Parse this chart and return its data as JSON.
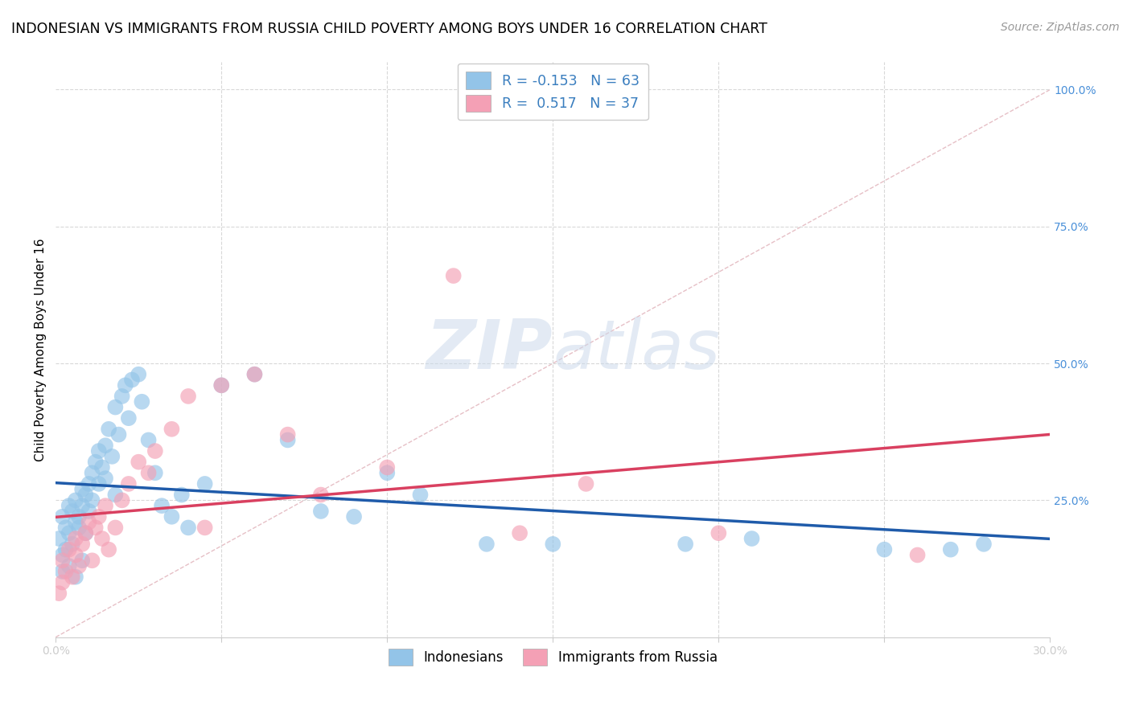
{
  "title": "INDONESIAN VS IMMIGRANTS FROM RUSSIA CHILD POVERTY AMONG BOYS UNDER 16 CORRELATION CHART",
  "source": "Source: ZipAtlas.com",
  "ylabel": "Child Poverty Among Boys Under 16",
  "xlim": [
    0.0,
    0.3
  ],
  "ylim": [
    0.0,
    1.05
  ],
  "indonesians_color": "#93c4e8",
  "indonesians_edge": "#93c4e8",
  "russians_color": "#f4a0b5",
  "russians_edge": "#f4a0b5",
  "indonesians_trend_color": "#1f5baa",
  "russians_trend_color": "#d94060",
  "diagonal_color": "#e0b0b8",
  "grid_color": "#d8d8d8",
  "tick_color": "#4a90d9",
  "R_indonesians": -0.153,
  "N_indonesians": 63,
  "R_russians": 0.517,
  "N_russians": 37,
  "legend_label_indonesians": "Indonesians",
  "legend_label_russians": "Immigrants from Russia",
  "background_color": "#ffffff",
  "title_fontsize": 12.5,
  "label_fontsize": 11,
  "tick_fontsize": 10,
  "source_fontsize": 10,
  "ind_x": [
    0.001,
    0.002,
    0.002,
    0.003,
    0.003,
    0.004,
    0.004,
    0.005,
    0.005,
    0.006,
    0.006,
    0.007,
    0.007,
    0.008,
    0.008,
    0.009,
    0.009,
    0.01,
    0.01,
    0.011,
    0.011,
    0.012,
    0.013,
    0.013,
    0.014,
    0.015,
    0.015,
    0.016,
    0.017,
    0.018,
    0.018,
    0.019,
    0.02,
    0.021,
    0.022,
    0.023,
    0.025,
    0.026,
    0.028,
    0.03,
    0.032,
    0.035,
    0.038,
    0.04,
    0.045,
    0.05,
    0.06,
    0.07,
    0.08,
    0.09,
    0.1,
    0.11,
    0.13,
    0.15,
    0.19,
    0.21,
    0.25,
    0.27,
    0.28,
    0.002,
    0.004,
    0.006,
    0.008
  ],
  "ind_y": [
    0.18,
    0.15,
    0.22,
    0.16,
    0.2,
    0.19,
    0.24,
    0.17,
    0.23,
    0.21,
    0.25,
    0.2,
    0.22,
    0.24,
    0.27,
    0.19,
    0.26,
    0.28,
    0.23,
    0.3,
    0.25,
    0.32,
    0.28,
    0.34,
    0.31,
    0.29,
    0.35,
    0.38,
    0.33,
    0.42,
    0.26,
    0.37,
    0.44,
    0.46,
    0.4,
    0.47,
    0.48,
    0.43,
    0.36,
    0.3,
    0.24,
    0.22,
    0.26,
    0.2,
    0.28,
    0.46,
    0.48,
    0.36,
    0.23,
    0.22,
    0.3,
    0.26,
    0.17,
    0.17,
    0.17,
    0.18,
    0.16,
    0.16,
    0.17,
    0.12,
    0.13,
    0.11,
    0.14
  ],
  "rus_x": [
    0.001,
    0.002,
    0.002,
    0.003,
    0.004,
    0.005,
    0.006,
    0.006,
    0.007,
    0.008,
    0.009,
    0.01,
    0.011,
    0.012,
    0.013,
    0.014,
    0.015,
    0.016,
    0.018,
    0.02,
    0.022,
    0.025,
    0.028,
    0.03,
    0.035,
    0.04,
    0.045,
    0.05,
    0.06,
    0.07,
    0.08,
    0.1,
    0.12,
    0.14,
    0.16,
    0.2,
    0.26
  ],
  "rus_y": [
    0.08,
    0.1,
    0.14,
    0.12,
    0.16,
    0.11,
    0.15,
    0.18,
    0.13,
    0.17,
    0.19,
    0.21,
    0.14,
    0.2,
    0.22,
    0.18,
    0.24,
    0.16,
    0.2,
    0.25,
    0.28,
    0.32,
    0.3,
    0.34,
    0.38,
    0.44,
    0.2,
    0.46,
    0.48,
    0.37,
    0.26,
    0.31,
    0.66,
    0.19,
    0.28,
    0.19,
    0.15
  ]
}
